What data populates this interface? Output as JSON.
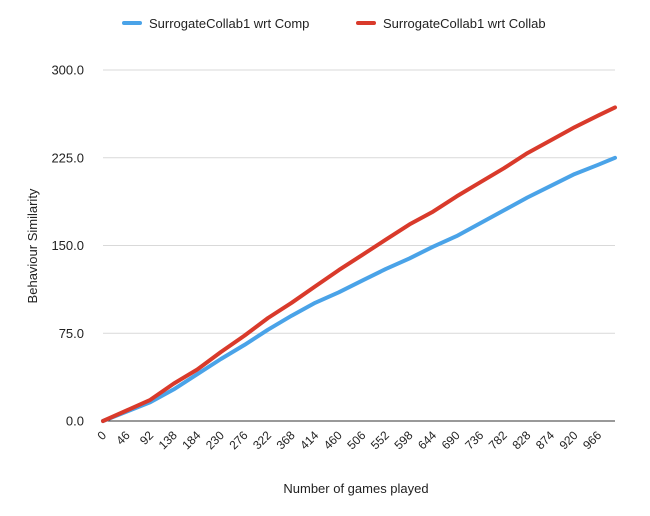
{
  "chart_data": {
    "type": "line",
    "title": "",
    "xlabel": "Number of games played",
    "ylabel": "Behaviour Similarity",
    "ylim": [
      0,
      300
    ],
    "yticks": [
      "0.0",
      "75.0",
      "150.0",
      "225.0",
      "300.0"
    ],
    "xlim": [
      0,
      999
    ],
    "xticks": [
      "0",
      "46",
      "92",
      "138",
      "184",
      "230",
      "276",
      "322",
      "368",
      "414",
      "460",
      "506",
      "552",
      "598",
      "644",
      "690",
      "736",
      "782",
      "828",
      "874",
      "920",
      "966"
    ],
    "grid": "horizontal",
    "legend_position": "top",
    "series": [
      {
        "name": "SurrogateCollab1 wrt Comp",
        "color": "#4aa3e8",
        "points": [
          [
            0,
            0
          ],
          [
            46,
            8
          ],
          [
            92,
            16
          ],
          [
            138,
            27
          ],
          [
            184,
            40
          ],
          [
            230,
            53
          ],
          [
            276,
            65
          ],
          [
            322,
            78
          ],
          [
            368,
            90
          ],
          [
            414,
            101
          ],
          [
            460,
            110
          ],
          [
            506,
            120
          ],
          [
            552,
            130
          ],
          [
            598,
            139
          ],
          [
            644,
            149
          ],
          [
            690,
            158
          ],
          [
            736,
            169
          ],
          [
            782,
            180
          ],
          [
            828,
            191
          ],
          [
            874,
            201
          ],
          [
            920,
            211
          ],
          [
            966,
            219
          ],
          [
            999,
            225
          ]
        ]
      },
      {
        "name": "SurrogateCollab1 wrt Collab",
        "color": "#d93a2b",
        "points": [
          [
            0,
            0
          ],
          [
            46,
            9
          ],
          [
            92,
            18
          ],
          [
            138,
            32
          ],
          [
            184,
            44
          ],
          [
            230,
            59
          ],
          [
            276,
            73
          ],
          [
            322,
            88
          ],
          [
            368,
            101
          ],
          [
            414,
            115
          ],
          [
            460,
            129
          ],
          [
            506,
            142
          ],
          [
            552,
            155
          ],
          [
            598,
            168
          ],
          [
            644,
            179
          ],
          [
            690,
            192
          ],
          [
            736,
            204
          ],
          [
            782,
            216
          ],
          [
            828,
            229
          ],
          [
            874,
            240
          ],
          [
            920,
            251
          ],
          [
            966,
            261
          ],
          [
            999,
            268
          ]
        ]
      }
    ]
  }
}
